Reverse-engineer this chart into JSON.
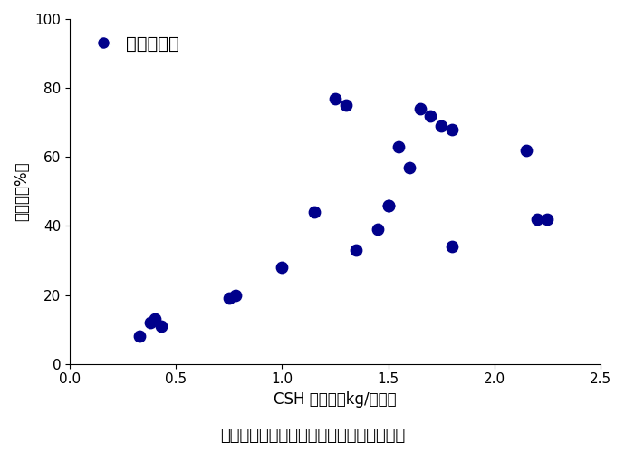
{
  "x_data": [
    0.33,
    0.38,
    0.4,
    0.43,
    0.75,
    0.78,
    1.0,
    1.15,
    1.25,
    1.3,
    1.35,
    1.45,
    1.5,
    1.5,
    1.55,
    1.6,
    1.65,
    1.7,
    1.75,
    1.8,
    1.8,
    2.15,
    2.2,
    2.25
  ],
  "y_data": [
    8,
    12,
    13,
    11,
    19,
    20,
    28,
    44,
    77,
    75,
    33,
    39,
    46,
    46,
    63,
    57,
    74,
    72,
    69,
    68,
    34,
    62,
    42,
    42
  ],
  "dot_color": "#00008B",
  "dot_size": 80,
  "xlim": [
    0,
    2.5
  ],
  "ylim": [
    0,
    100
  ],
  "xticks": [
    0,
    0.5,
    1.0,
    1.5,
    2.0,
    2.5
  ],
  "yticks": [
    0,
    20,
    40,
    60,
    80,
    100
  ],
  "xlabel": "CSH 添加率（kg/トン）",
  "ylabel": "除去率（%）",
  "legend_label": "色度除去率",
  "title_caption": "図７．　資材の添加率と色度除去率の関係",
  "background_color": "#ffffff",
  "legend_fontsize": 14,
  "axis_fontsize": 12,
  "caption_fontsize": 13
}
